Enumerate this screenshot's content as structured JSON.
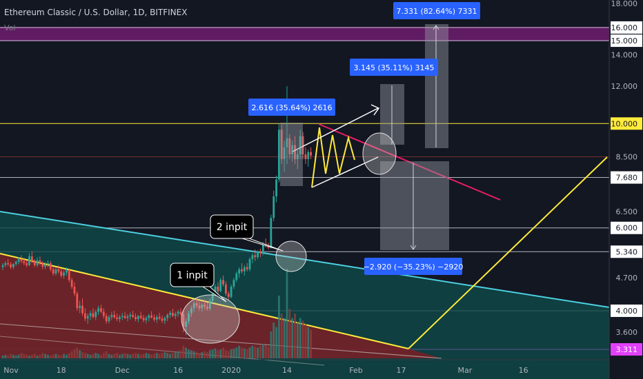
{
  "header": {
    "title": "Ethereum Classic / U.S. Dollar, 1D, BITFINEX",
    "indicator": "Vol"
  },
  "colors": {
    "background": "#131722",
    "up_candle": "#26a69a",
    "down_candle": "#ef5350",
    "yellow_line": "#ffeb3b",
    "cyan_line": "#4dd0e1",
    "magenta_zone": "#7b1f7a",
    "pink_line": "#e91e63",
    "measure_box": "#2962ff",
    "price_label_bg": "#ffffff"
  },
  "chart_data": {
    "type": "candlestick",
    "y_axis": {
      "scale": "log",
      "ticks": [
        "18.000",
        "16.000",
        "14.000",
        "12.000",
        "10.000",
        "8.500",
        "7.680",
        "6.500",
        "6.000",
        "5.340",
        "4.700",
        "4.000",
        "3.600",
        "3.311"
      ],
      "tick_values": [
        18,
        16,
        14,
        12,
        10,
        8.5,
        7.68,
        6.5,
        6,
        5.34,
        4.7,
        4,
        3.6,
        3.311
      ],
      "boxed_ticks": [
        "16.000",
        "15.000",
        "10.000",
        "7.680",
        "6.000",
        "5.340",
        "4.000",
        "3.311"
      ],
      "boxed_values": [
        16,
        15,
        10,
        7.68,
        6,
        5.34,
        4,
        3.311
      ]
    },
    "x_axis": {
      "labels": [
        "Nov",
        "18",
        "Dec",
        "16",
        "2020",
        "14",
        "Feb",
        "17",
        "Mar",
        "16"
      ],
      "label_days": [
        0,
        22,
        45,
        66,
        86,
        107,
        133,
        150,
        174,
        196
      ]
    },
    "candles": [
      [
        0,
        4.95,
        5.05,
        4.88,
        5.0
      ],
      [
        1,
        5.0,
        5.1,
        4.95,
        5.05
      ],
      [
        2,
        5.05,
        5.15,
        4.98,
        5.02
      ],
      [
        3,
        5.02,
        5.08,
        4.9,
        4.95
      ],
      [
        4,
        4.95,
        5.05,
        4.9,
        5.03
      ],
      [
        5,
        5.03,
        5.12,
        4.98,
        5.08
      ],
      [
        6,
        5.08,
        5.2,
        5.02,
        5.15
      ],
      [
        7,
        5.15,
        5.25,
        5.05,
        5.1
      ],
      [
        8,
        5.1,
        5.18,
        5.0,
        5.05
      ],
      [
        9,
        5.05,
        5.12,
        4.95,
        5.0
      ],
      [
        10,
        5.0,
        5.3,
        4.98,
        5.22
      ],
      [
        11,
        5.22,
        5.35,
        5.05,
        5.1
      ],
      [
        12,
        5.1,
        5.15,
        4.95,
        5.0
      ],
      [
        13,
        5.0,
        5.2,
        4.95,
        5.12
      ],
      [
        14,
        5.12,
        5.22,
        5.0,
        5.05
      ],
      [
        15,
        5.05,
        5.1,
        4.9,
        4.96
      ],
      [
        16,
        4.96,
        5.08,
        4.9,
        5.02
      ],
      [
        17,
        5.02,
        5.12,
        4.95,
        5.05
      ],
      [
        18,
        5.05,
        5.1,
        4.85,
        4.9
      ],
      [
        19,
        4.9,
        4.95,
        4.75,
        4.8
      ],
      [
        20,
        4.8,
        4.95,
        4.75,
        4.9
      ],
      [
        21,
        4.9,
        5.0,
        4.8,
        4.85
      ],
      [
        22,
        4.85,
        4.92,
        4.7,
        4.75
      ],
      [
        23,
        4.75,
        4.88,
        4.68,
        4.82
      ],
      [
        24,
        4.82,
        4.95,
        4.75,
        4.88
      ],
      [
        25,
        4.88,
        4.92,
        4.6,
        4.65
      ],
      [
        26,
        4.65,
        4.7,
        4.45,
        4.5
      ],
      [
        27,
        4.5,
        4.6,
        4.3,
        4.35
      ],
      [
        28,
        4.35,
        4.4,
        4.0,
        4.05
      ],
      [
        29,
        4.05,
        4.2,
        3.95,
        4.1
      ],
      [
        30,
        4.1,
        4.25,
        3.9,
        3.95
      ],
      [
        31,
        3.95,
        4.05,
        3.8,
        3.85
      ],
      [
        32,
        3.85,
        3.95,
        3.75,
        3.9
      ],
      [
        33,
        3.9,
        4.0,
        3.82,
        3.95
      ],
      [
        34,
        3.95,
        4.05,
        3.85,
        3.88
      ],
      [
        35,
        3.88,
        4.02,
        3.82,
        3.98
      ],
      [
        36,
        3.98,
        4.1,
        3.92,
        4.05
      ],
      [
        37,
        4.05,
        4.12,
        3.95,
        3.98
      ],
      [
        38,
        3.98,
        4.05,
        3.85,
        3.9
      ],
      [
        39,
        3.9,
        3.95,
        3.75,
        3.8
      ],
      [
        40,
        3.8,
        3.92,
        3.76,
        3.88
      ],
      [
        41,
        3.88,
        3.98,
        3.82,
        3.92
      ],
      [
        42,
        3.92,
        4.0,
        3.85,
        3.87
      ],
      [
        43,
        3.87,
        3.95,
        3.8,
        3.84
      ],
      [
        44,
        3.84,
        3.92,
        3.78,
        3.88
      ],
      [
        45,
        3.88,
        3.96,
        3.82,
        3.9
      ],
      [
        46,
        3.9,
        3.98,
        3.84,
        3.86
      ],
      [
        47,
        3.86,
        3.94,
        3.8,
        3.89
      ],
      [
        48,
        3.89,
        3.97,
        3.83,
        3.92
      ],
      [
        49,
        3.92,
        4.0,
        3.86,
        3.88
      ],
      [
        50,
        3.88,
        3.95,
        3.8,
        3.84
      ],
      [
        51,
        3.84,
        3.92,
        3.78,
        3.9
      ],
      [
        52,
        3.9,
        3.98,
        3.84,
        3.86
      ],
      [
        53,
        3.86,
        3.92,
        3.78,
        3.82
      ],
      [
        54,
        3.82,
        3.9,
        3.76,
        3.86
      ],
      [
        55,
        3.86,
        3.94,
        3.8,
        3.91
      ],
      [
        56,
        3.91,
        3.99,
        3.85,
        3.87
      ],
      [
        57,
        3.87,
        3.93,
        3.79,
        3.83
      ],
      [
        58,
        3.83,
        3.92,
        3.77,
        3.88
      ],
      [
        59,
        3.88,
        3.96,
        3.82,
        3.85
      ],
      [
        60,
        3.85,
        3.91,
        3.77,
        3.81
      ],
      [
        61,
        3.81,
        3.89,
        3.75,
        3.86
      ],
      [
        62,
        3.86,
        3.95,
        3.8,
        3.92
      ],
      [
        63,
        3.92,
        4.0,
        3.86,
        3.96
      ],
      [
        64,
        3.96,
        4.04,
        3.88,
        3.9
      ],
      [
        65,
        3.9,
        3.98,
        3.84,
        3.94
      ],
      [
        66,
        3.94,
        4.02,
        3.88,
        3.98
      ],
      [
        67,
        3.98,
        4.05,
        3.9,
        3.93
      ],
      [
        68,
        3.93,
        4.0,
        3.6,
        3.7
      ],
      [
        69,
        3.7,
        3.85,
        3.55,
        3.8
      ],
      [
        70,
        3.8,
        4.0,
        3.75,
        3.95
      ],
      [
        71,
        3.95,
        4.1,
        3.88,
        4.05
      ],
      [
        72,
        4.05,
        4.2,
        3.98,
        4.15
      ],
      [
        73,
        4.15,
        4.25,
        4.05,
        4.1
      ],
      [
        74,
        4.1,
        4.18,
        4.0,
        4.05
      ],
      [
        75,
        4.05,
        4.15,
        3.98,
        4.12
      ],
      [
        76,
        4.12,
        4.22,
        4.02,
        4.08
      ],
      [
        77,
        4.08,
        4.16,
        4.0,
        4.04
      ],
      [
        78,
        4.04,
        4.25,
        4.0,
        4.2
      ],
      [
        79,
        4.2,
        4.4,
        4.15,
        4.35
      ],
      [
        80,
        4.35,
        4.55,
        4.3,
        4.5
      ],
      [
        81,
        4.5,
        4.6,
        4.35,
        4.4
      ],
      [
        82,
        4.4,
        4.7,
        4.38,
        4.65
      ],
      [
        83,
        4.65,
        4.75,
        4.5,
        4.55
      ],
      [
        84,
        4.55,
        4.62,
        4.3,
        4.35
      ],
      [
        85,
        4.35,
        4.4,
        4.22,
        4.28
      ],
      [
        86,
        4.28,
        4.55,
        4.25,
        4.5
      ],
      [
        87,
        4.5,
        4.7,
        4.45,
        4.65
      ],
      [
        88,
        4.65,
        4.85,
        4.6,
        4.8
      ],
      [
        89,
        4.8,
        4.95,
        4.7,
        4.9
      ],
      [
        90,
        4.9,
        5.05,
        4.8,
        4.85
      ],
      [
        91,
        4.85,
        5.0,
        4.75,
        4.95
      ],
      [
        92,
        4.95,
        5.05,
        4.85,
        4.9
      ],
      [
        93,
        4.9,
        5.2,
        4.85,
        5.15
      ],
      [
        94,
        5.15,
        5.3,
        5.05,
        5.25
      ],
      [
        95,
        5.25,
        5.4,
        5.1,
        5.2
      ],
      [
        96,
        5.2,
        5.38,
        5.15,
        5.35
      ],
      [
        97,
        5.35,
        5.42,
        5.2,
        5.3
      ],
      [
        98,
        5.3,
        5.6,
        5.25,
        5.55
      ],
      [
        99,
        5.55,
        5.7,
        5.45,
        5.5
      ],
      [
        100,
        5.5,
        5.58,
        5.4,
        5.45
      ],
      [
        101,
        5.45,
        6.4,
        5.42,
        6.3
      ],
      [
        102,
        6.3,
        7.2,
        6.2,
        7.0
      ],
      [
        103,
        7.0,
        7.75,
        6.8,
        7.6
      ],
      [
        104,
        7.6,
        10.0,
        7.5,
        9.7
      ],
      [
        105,
        9.7,
        9.95,
        8.2,
        8.4
      ],
      [
        106,
        8.4,
        9.2,
        7.9,
        8.9
      ],
      [
        107,
        8.9,
        12.0,
        8.2,
        9.3
      ],
      [
        108,
        9.3,
        9.5,
        8.4,
        8.6
      ],
      [
        109,
        8.6,
        9.2,
        8.3,
        9.0
      ],
      [
        110,
        9.0,
        9.4,
        8.2,
        8.4
      ],
      [
        111,
        8.4,
        8.8,
        8.0,
        8.6
      ],
      [
        112,
        8.6,
        9.7,
        8.4,
        9.4
      ],
      [
        113,
        9.4,
        9.6,
        8.4,
        8.6
      ],
      [
        114,
        8.6,
        8.9,
        8.2,
        8.4
      ],
      [
        115,
        8.4,
        8.8,
        8.1,
        8.7
      ],
      [
        116,
        8.7,
        8.9,
        8.4,
        8.55
      ]
    ],
    "volume": [
      3,
      4,
      3,
      5,
      4,
      3,
      4,
      6,
      5,
      4,
      3,
      4,
      5,
      3,
      4,
      6,
      5,
      4,
      3,
      4,
      5,
      4,
      3,
      5,
      4,
      6,
      8,
      10,
      12,
      9,
      7,
      6,
      5,
      4,
      5,
      6,
      5,
      4,
      6,
      8,
      5,
      4,
      5,
      6,
      4,
      5,
      6,
      5,
      4,
      5,
      6,
      5,
      4,
      5,
      6,
      5,
      4,
      5,
      6,
      5,
      6,
      7,
      6,
      5,
      6,
      7,
      8,
      9,
      14,
      12,
      10,
      9,
      8,
      7,
      6,
      7,
      8,
      7,
      9,
      10,
      11,
      9,
      10,
      12,
      9,
      8,
      10,
      11,
      12,
      14,
      12,
      11,
      10,
      12,
      14,
      13,
      12,
      14,
      16,
      15,
      13,
      30,
      40,
      35,
      70,
      50,
      45,
      100,
      55,
      45,
      50,
      40,
      45,
      42,
      38,
      35,
      32
    ],
    "annotations": {
      "measure_labels": [
        "2.616 (35.64%) 2616",
        "3.145 (35.11%) 3145",
        "7.331 (82.64%) 7331",
        "−2.920 (−35.23%) −2920"
      ],
      "callouts": [
        "1 inpit",
        "2 inpit"
      ]
    }
  }
}
